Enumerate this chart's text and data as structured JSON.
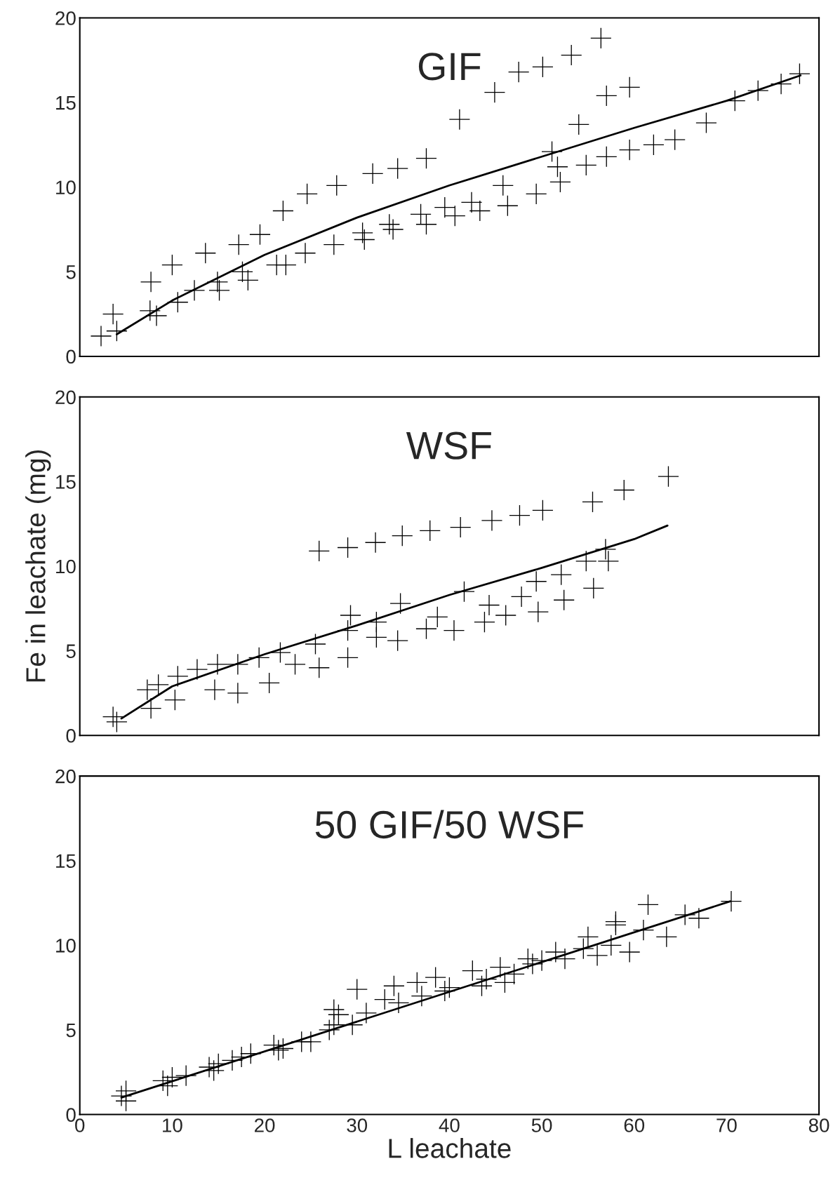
{
  "chart_data": [
    {
      "type": "scatter",
      "title": "GIF",
      "xlim": [
        0,
        80
      ],
      "ylim": [
        0,
        20
      ],
      "xticks": [
        0,
        10,
        20,
        30,
        40,
        50,
        60,
        70,
        80
      ],
      "yticks": [
        0,
        5,
        10,
        15,
        20
      ],
      "tick_labels": "y",
      "grid": false,
      "legend": false,
      "series": [
        {
          "marker": "cross",
          "color": "#000000",
          "x": [
            3.6,
            7.7,
            10,
            13.6,
            17.2,
            19.5,
            22,
            24.6,
            27.8,
            31.7,
            34.4,
            37.5,
            41.1,
            44.9,
            47.5,
            50.1,
            53.2,
            56.4,
            57,
            59.5,
            54,
            67.8,
            2.3,
            4,
            7.6,
            8.3,
            10.6,
            12.4,
            14.9,
            15.1,
            17.6,
            18.2,
            21.3,
            22.3,
            24.4,
            27.5,
            30.6,
            30.8,
            33.5,
            33.9,
            36.9,
            37.5,
            39.5,
            40.6,
            42.4,
            43.3,
            45.8,
            46.3,
            49.4,
            51.1,
            51.7,
            52,
            54.8,
            57,
            59.5,
            62.1,
            64.4,
            70.9,
            73.4,
            75.9,
            77.9
          ],
          "values": [
            2.5,
            4.4,
            5.4,
            6.1,
            6.6,
            7.2,
            8.6,
            9.6,
            10.1,
            10.8,
            11.1,
            11.7,
            14,
            15.6,
            16.8,
            17.1,
            17.8,
            18.8,
            15.4,
            15.9,
            13.7,
            13.8,
            1.2,
            1.5,
            2.7,
            2.4,
            3.2,
            3.9,
            4.4,
            3.9,
            5,
            4.5,
            5.4,
            5.4,
            6.1,
            6.6,
            7.3,
            6.9,
            7.8,
            7.5,
            8.4,
            7.8,
            8.8,
            8.3,
            9.1,
            8.6,
            10.1,
            8.9,
            9.6,
            12.1,
            11.2,
            10.3,
            11.3,
            11.8,
            12.2,
            12.5,
            12.8,
            15.1,
            15.7,
            16.1,
            16.7
          ]
        },
        {
          "type": "line",
          "marker": "none",
          "line_style": "solid",
          "color": "#000000",
          "x": [
            4,
            10,
            20,
            30,
            40,
            50,
            60,
            70,
            78
          ],
          "values": [
            1.3,
            3.3,
            6,
            8.2,
            10.1,
            11.8,
            13.5,
            15.1,
            16.6
          ]
        }
      ]
    },
    {
      "type": "scatter",
      "title": "WSF",
      "ylabel": "Fe in leachate (mg)",
      "xlim": [
        0,
        80
      ],
      "ylim": [
        0,
        20
      ],
      "xticks": [
        0,
        10,
        20,
        30,
        40,
        50,
        60,
        70,
        80
      ],
      "yticks": [
        0,
        5,
        10,
        15,
        20
      ],
      "tick_labels": "y",
      "grid": false,
      "legend": false,
      "series": [
        {
          "marker": "cross",
          "color": "#000000",
          "x": [
            25.9,
            29,
            32,
            34.9,
            37.9,
            41.2,
            44.6,
            47.6,
            50.1,
            55.5,
            58.9,
            63.7,
            3.6,
            4,
            7.3,
            7.7,
            8.5,
            10.3,
            10.6,
            12.7,
            14.6,
            14.9,
            17.1,
            17.1,
            19.4,
            20.5,
            21.7,
            23.3,
            25.5,
            25.9,
            29,
            29,
            29.3,
            32.1,
            32.1,
            34.4,
            34.7,
            37.5,
            38.7,
            40.5,
            41.6,
            43.8,
            44.3,
            46.1,
            47.8,
            49.4,
            49.6,
            52.1,
            52.4,
            54.8,
            55.6,
            57.2,
            56.9
          ],
          "values": [
            10.9,
            11.1,
            11.4,
            11.8,
            12.1,
            12.3,
            12.7,
            13,
            13.3,
            13.8,
            14.5,
            15.3,
            1.1,
            0.8,
            2.7,
            1.6,
            3,
            2.1,
            3.5,
            3.9,
            2.7,
            4.2,
            2.5,
            4.2,
            4.6,
            3.1,
            4.9,
            4.2,
            5.4,
            4,
            6.2,
            4.6,
            7.1,
            5.8,
            6.7,
            5.6,
            7.8,
            6.3,
            7,
            6.2,
            8.5,
            6.7,
            7.7,
            7.1,
            8.2,
            9.1,
            7.3,
            9.5,
            8,
            10.3,
            8.7,
            10.3,
            11
          ]
        },
        {
          "type": "line",
          "marker": "none",
          "line_style": "solid",
          "color": "#000000",
          "x": [
            4.5,
            10,
            20,
            30,
            40,
            50,
            60,
            63.6
          ],
          "values": [
            1,
            2.9,
            4.8,
            6.5,
            8.3,
            9.9,
            11.6,
            12.4
          ]
        }
      ]
    },
    {
      "type": "scatter",
      "title": "50 GIF/50 WSF",
      "xlabel": "L leachate",
      "xlim": [
        0,
        80
      ],
      "ylim": [
        0,
        20
      ],
      "xticks": [
        0,
        10,
        20,
        30,
        40,
        50,
        60,
        70,
        80
      ],
      "yticks": [
        0,
        5,
        10,
        15,
        20
      ],
      "grid": false,
      "legend": false,
      "series": [
        {
          "marker": "cross",
          "color": "#000000",
          "x": [
            4.5,
            5,
            5,
            9,
            9.5,
            10,
            11.5,
            14,
            14.5,
            15,
            16.5,
            17.5,
            18.5,
            21,
            21.5,
            22,
            24,
            25,
            27,
            27.5,
            27.5,
            28,
            29.5,
            30,
            31,
            33,
            34,
            34.5,
            36.5,
            37,
            38.5,
            39.5,
            40,
            42.5,
            43.5,
            44,
            45.5,
            46,
            47,
            48.5,
            49,
            50,
            51.5,
            52.5,
            54.5,
            55,
            56,
            57.5,
            58,
            58,
            59.5,
            61,
            61.5,
            63.5,
            65.5,
            67,
            70.5
          ],
          "values": [
            1.1,
            0.8,
            1.4,
            2,
            1.7,
            2.2,
            2.3,
            2.8,
            2.6,
            3,
            3.2,
            3.4,
            3.6,
            4.1,
            3.8,
            3.9,
            4.3,
            4.3,
            5,
            5.3,
            6.2,
            5.9,
            5.3,
            7.4,
            6,
            6.8,
            7.6,
            6.6,
            7.8,
            7,
            8.1,
            7.3,
            7.5,
            8.5,
            7.6,
            8,
            8.7,
            7.8,
            8.3,
            9.2,
            8.9,
            9.1,
            9.6,
            9.2,
            9.8,
            10.5,
            9.4,
            10,
            11.4,
            11.2,
            9.6,
            10.9,
            12.4,
            10.5,
            11.8,
            11.6,
            12.6
          ]
        },
        {
          "type": "line",
          "marker": "none",
          "line_style": "solid",
          "color": "#000000",
          "x": [
            4.5,
            70.4
          ],
          "values": [
            1,
            12.6
          ]
        }
      ]
    }
  ]
}
